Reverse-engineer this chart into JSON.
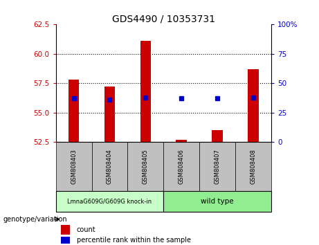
{
  "title": "GDS4490 / 10353731",
  "samples": [
    "GSM808403",
    "GSM808404",
    "GSM808405",
    "GSM808406",
    "GSM808407",
    "GSM808408"
  ],
  "bar_tops": [
    57.8,
    57.2,
    61.1,
    52.7,
    53.5,
    58.7
  ],
  "bar_base": 52.5,
  "percentile_values": [
    56.2,
    56.1,
    56.3,
    56.2,
    56.2,
    56.3
  ],
  "ylim_left": [
    52.5,
    62.5
  ],
  "ylim_right": [
    0,
    100
  ],
  "yticks_left": [
    52.5,
    55.0,
    57.5,
    60.0,
    62.5
  ],
  "yticks_right": [
    0,
    25,
    50,
    75,
    100
  ],
  "group1_label": "LmnaG609G/G609G knock-in",
  "group2_label": "wild type",
  "group1_indices": [
    0,
    1,
    2
  ],
  "group2_indices": [
    3,
    4,
    5
  ],
  "bar_color": "#CC0000",
  "dot_color": "#0000CC",
  "legend_count_label": "count",
  "legend_pct_label": "percentile rank within the sample",
  "xlabel": "genotype/variation",
  "tick_area_color": "#C0C0C0",
  "genotype_box1_color": "#C8FFC8",
  "genotype_box2_color": "#90EE90",
  "left_tick_color": "#CC0000",
  "right_tick_color": "#0000CC",
  "title_fontsize": 10,
  "bar_width": 0.3
}
